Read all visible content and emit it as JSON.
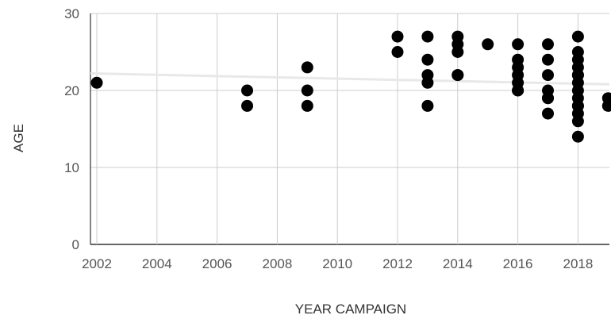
{
  "chart_data": {
    "type": "scatter",
    "title": "",
    "xlabel": "YEAR CAMPAIGN",
    "ylabel": "AGE",
    "xlim": [
      2002,
      2019
    ],
    "ylim": [
      0,
      30
    ],
    "x_ticks": [
      "2002",
      "2004",
      "2006",
      "2008",
      "2010",
      "2012",
      "2014",
      "2016",
      "2018"
    ],
    "y_ticks": [
      "0",
      "10",
      "20",
      "30"
    ],
    "grid": true,
    "legend": "none",
    "point_color": "#000000",
    "trendline_color": "#e8e8e8",
    "trendline": {
      "x": [
        2002,
        2019
      ],
      "y": [
        22.2,
        20.8
      ]
    },
    "series": [
      {
        "x": [
          2002,
          2007,
          2007,
          2009,
          2009,
          2009,
          2012,
          2012,
          2013,
          2013,
          2013,
          2013,
          2013,
          2014,
          2014,
          2014,
          2014,
          2014,
          2015,
          2016,
          2016,
          2016,
          2016,
          2016,
          2016,
          2016,
          2017,
          2017,
          2017,
          2017,
          2017,
          2017,
          2017,
          2018,
          2018,
          2018,
          2018,
          2018,
          2018,
          2018,
          2018,
          2018,
          2018,
          2018,
          2018,
          2018,
          2018,
          2019,
          2019
        ],
        "y": [
          21,
          20,
          18,
          23,
          20,
          18,
          27,
          25,
          27,
          24,
          22,
          21,
          18,
          27,
          26,
          25,
          22,
          22,
          26,
          26,
          24,
          23,
          22,
          21,
          20,
          20,
          26,
          24,
          22,
          20,
          19,
          19,
          17,
          27,
          25,
          24,
          23,
          22,
          21,
          20,
          19,
          18,
          17,
          16,
          14,
          22,
          18,
          19,
          18
        ]
      }
    ]
  }
}
